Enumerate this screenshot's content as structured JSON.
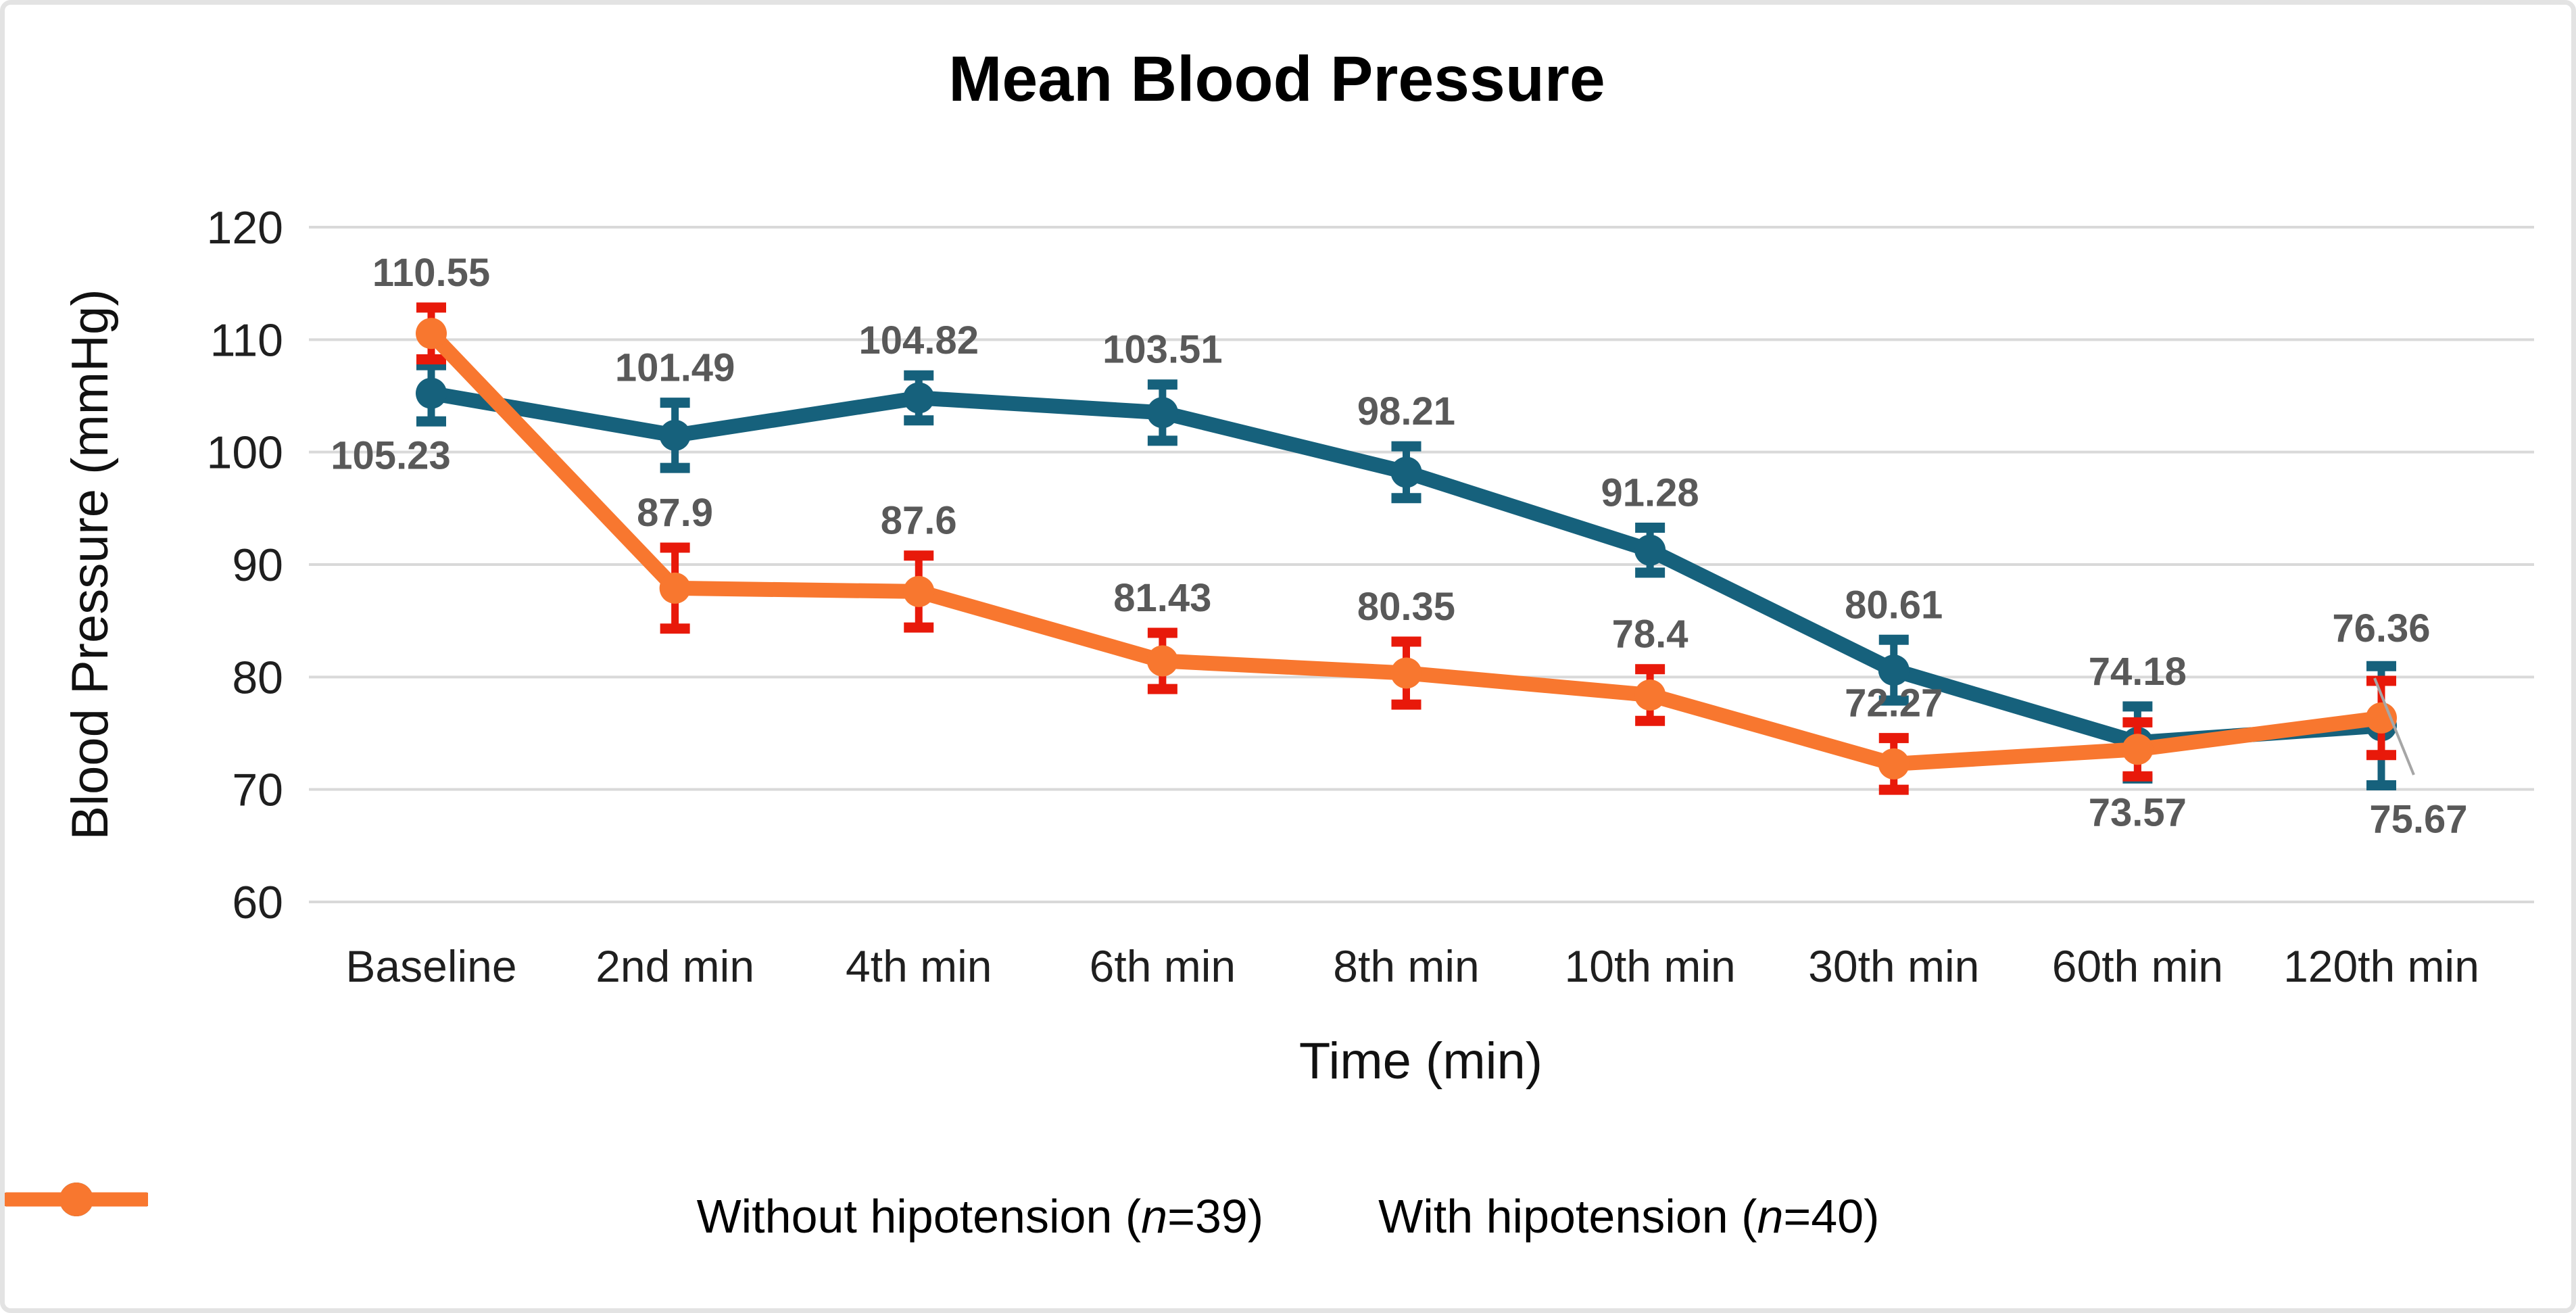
{
  "chart_data": {
    "type": "line",
    "title": "Mean Blood Pressure",
    "xlabel": "Time (min)",
    "ylabel": "Blood Pressure (mmHg)",
    "ylim": [
      60,
      120
    ],
    "yticks": [
      120,
      110,
      100,
      90,
      80,
      70,
      60
    ],
    "grid": true,
    "grid_color": "#D9D9D9",
    "data_label_color": "#595959",
    "leader_line_color": "#A6A6A6",
    "legend_position": "bottom",
    "categories": [
      "Baseline",
      "2nd min",
      "4th min",
      "6th min",
      "8th min",
      "10th min",
      "30th min",
      "60th min",
      "120th min"
    ],
    "series": [
      {
        "name": "Without hipotension (n=39)",
        "legend_pre": "Without hipotension (",
        "legend_italic": "n",
        "legend_post": "=39)",
        "color": "#16617C",
        "error_color": "#16617C",
        "values": [
          105.23,
          101.49,
          104.82,
          103.51,
          98.21,
          91.28,
          80.61,
          74.18,
          75.67
        ],
        "errors": [
          2.5,
          2.9,
          2.0,
          2.5,
          2.3,
          2.0,
          2.7,
          3.2,
          5.3
        ]
      },
      {
        "name": "With hipotension (n=40)",
        "legend_pre": "With hipotension (",
        "legend_italic": "n",
        "legend_post": "=40)",
        "color": "#F8772F",
        "error_color": "#E8190A",
        "values": [
          110.55,
          87.9,
          87.6,
          81.43,
          80.35,
          78.4,
          72.27,
          73.57,
          76.36
        ],
        "errors": [
          2.3,
          3.6,
          3.2,
          2.5,
          2.8,
          2.3,
          2.3,
          2.4,
          3.3
        ]
      }
    ]
  }
}
